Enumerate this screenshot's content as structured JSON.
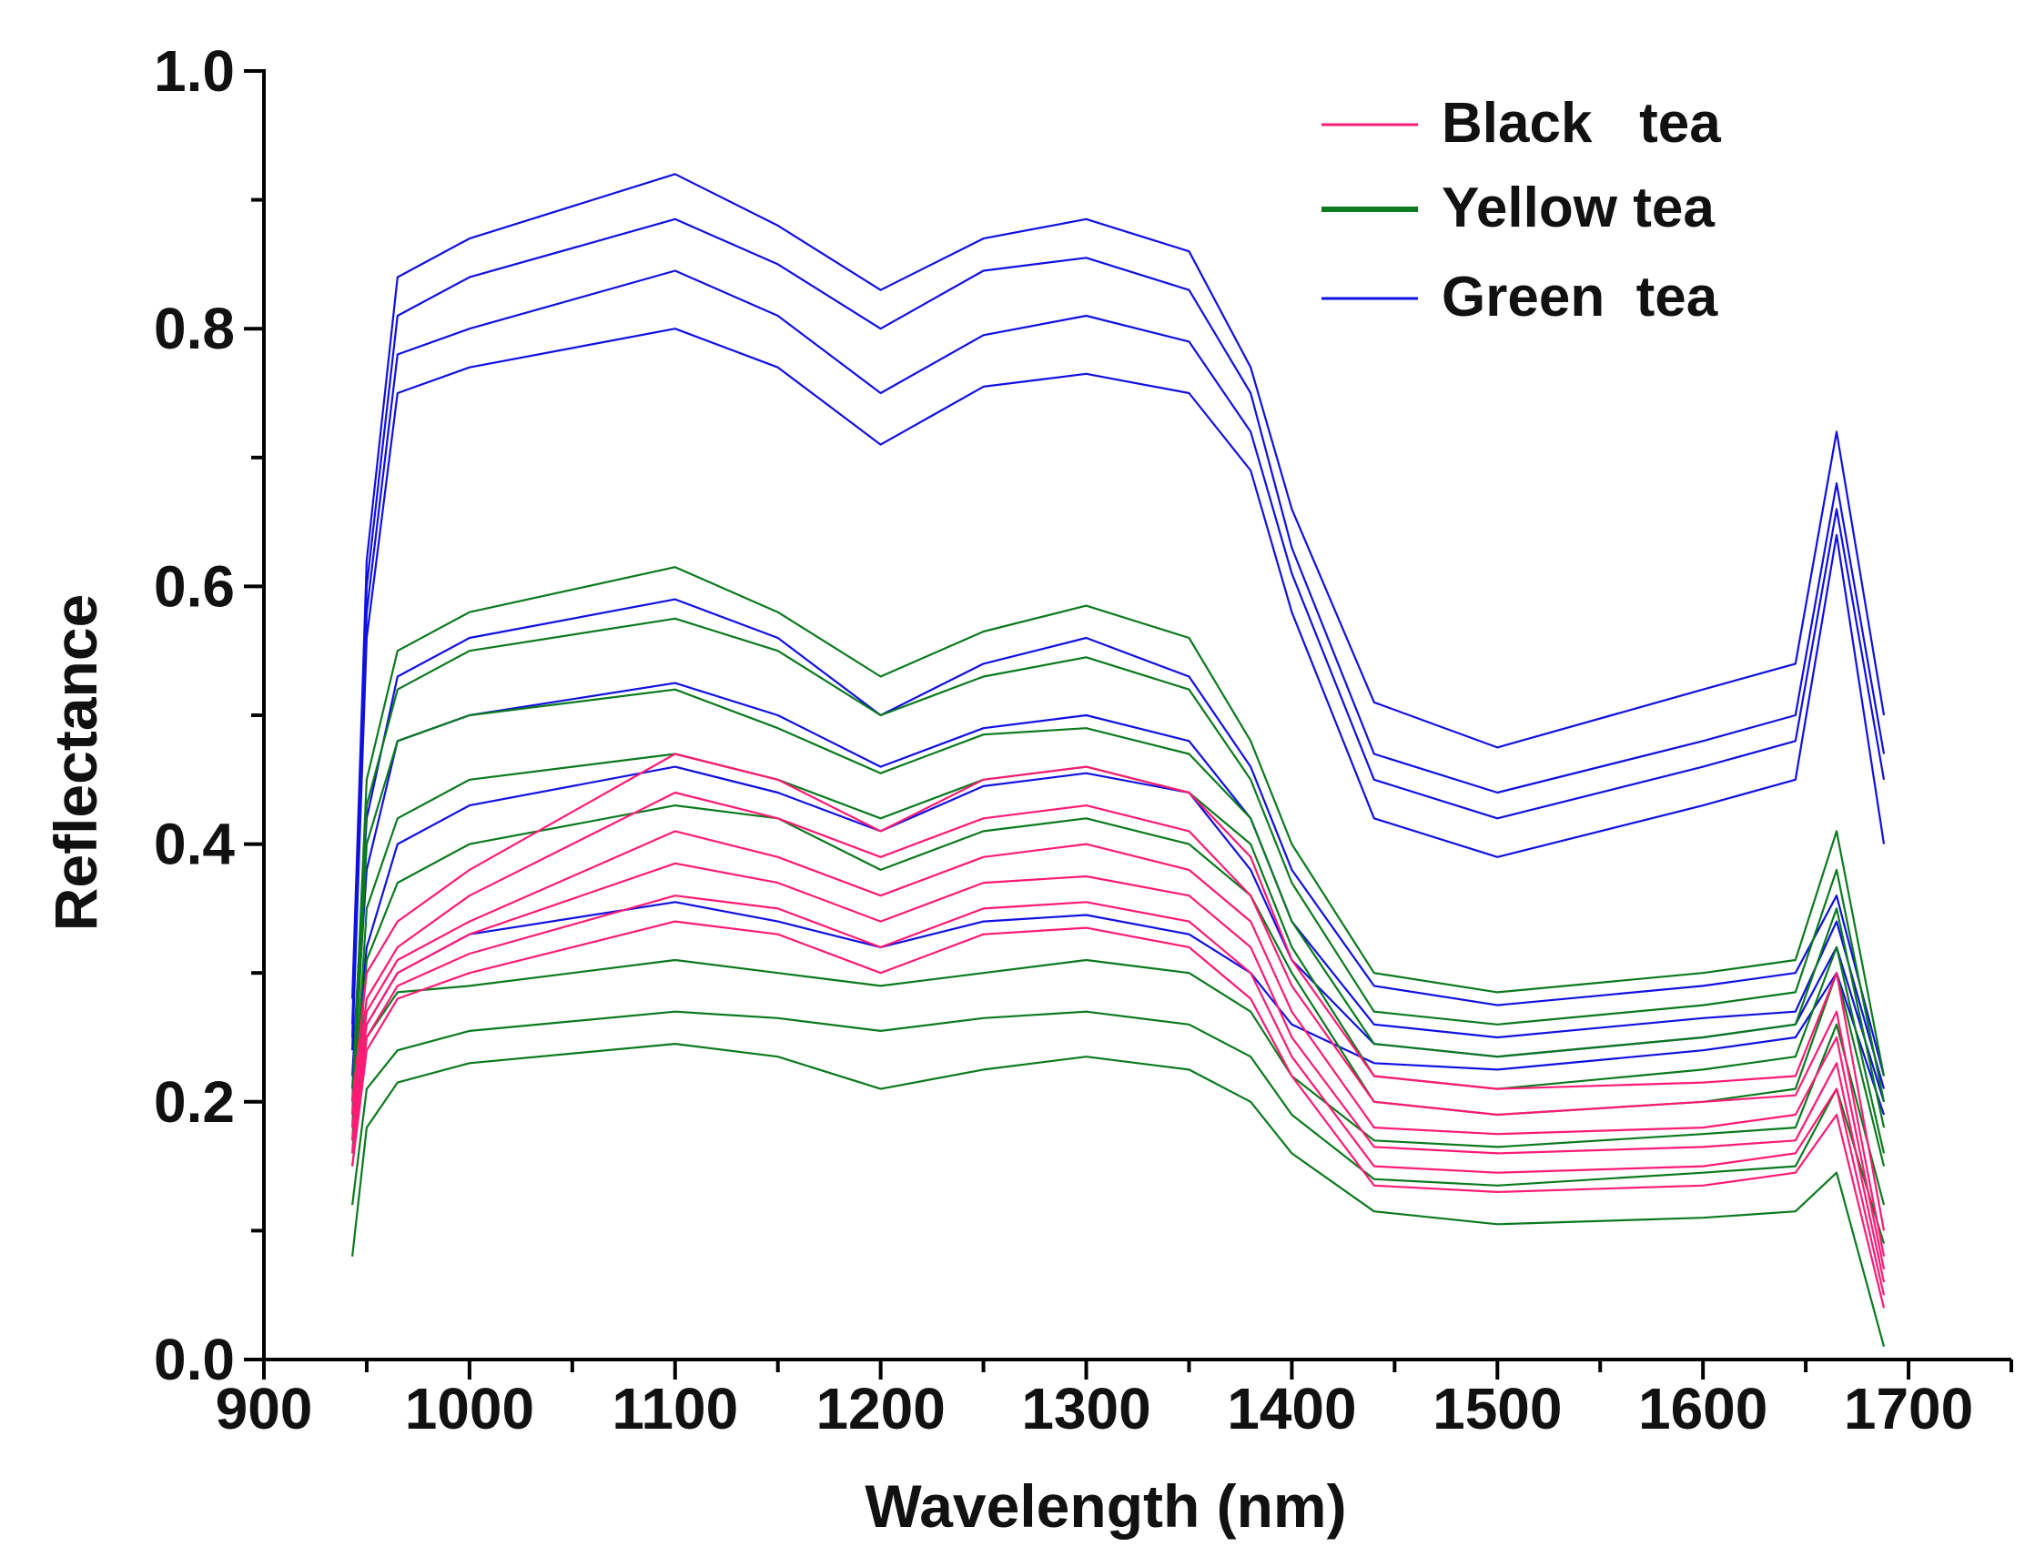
{
  "chart_data": {
    "type": "line",
    "xlabel": "Wavelength (nm)",
    "ylabel": "Reflectance",
    "xlim": [
      900,
      1750
    ],
    "ylim": [
      0.0,
      1.0
    ],
    "x_ticks": [
      900,
      1000,
      1100,
      1200,
      1300,
      1400,
      1500,
      1600,
      1700
    ],
    "y_ticks": [
      "0.0",
      "0.2",
      "0.4",
      "0.6",
      "0.8",
      "1.0"
    ],
    "grid": false,
    "legend_position": "top-right",
    "legend": [
      {
        "label": "Black   tea",
        "color": "#ff1a75"
      },
      {
        "label": "Yellow tea",
        "color": "#0b7a1e"
      },
      {
        "label": "Green  tea",
        "color": "#1010e0"
      }
    ],
    "x": [
      943,
      950,
      965,
      1000,
      1100,
      1150,
      1200,
      1250,
      1300,
      1350,
      1380,
      1400,
      1440,
      1500,
      1600,
      1645,
      1665,
      1688
    ],
    "series": [
      {
        "group": "Green tea",
        "color": "#1010e0",
        "values": [
          0.28,
          0.62,
          0.84,
          0.87,
          0.92,
          0.88,
          0.83,
          0.87,
          0.885,
          0.86,
          0.77,
          0.66,
          0.51,
          0.475,
          0.52,
          0.54,
          0.72,
          0.5
        ]
      },
      {
        "group": "Green tea",
        "color": "#1010e0",
        "values": [
          0.26,
          0.6,
          0.81,
          0.84,
          0.885,
          0.85,
          0.8,
          0.845,
          0.855,
          0.83,
          0.75,
          0.63,
          0.47,
          0.44,
          0.48,
          0.5,
          0.68,
          0.47
        ]
      },
      {
        "group": "Green tea",
        "color": "#1010e0",
        "values": [
          0.25,
          0.58,
          0.78,
          0.8,
          0.845,
          0.81,
          0.75,
          0.795,
          0.81,
          0.79,
          0.72,
          0.61,
          0.45,
          0.42,
          0.46,
          0.48,
          0.66,
          0.45
        ]
      },
      {
        "group": "Green tea",
        "color": "#1010e0",
        "values": [
          0.24,
          0.56,
          0.75,
          0.77,
          0.8,
          0.77,
          0.71,
          0.755,
          0.765,
          0.75,
          0.69,
          0.58,
          0.42,
          0.39,
          0.43,
          0.45,
          0.64,
          0.4
        ]
      },
      {
        "group": "Green tea",
        "color": "#1010e0",
        "values": [
          0.22,
          0.42,
          0.53,
          0.56,
          0.59,
          0.56,
          0.5,
          0.54,
          0.56,
          0.53,
          0.46,
          0.38,
          0.29,
          0.275,
          0.29,
          0.3,
          0.36,
          0.22
        ]
      },
      {
        "group": "Green tea",
        "color": "#1010e0",
        "values": [
          0.21,
          0.38,
          0.48,
          0.5,
          0.525,
          0.5,
          0.46,
          0.49,
          0.5,
          0.48,
          0.42,
          0.34,
          0.26,
          0.25,
          0.265,
          0.27,
          0.34,
          0.21
        ]
      },
      {
        "group": "Green tea",
        "color": "#1010e0",
        "values": [
          0.2,
          0.32,
          0.4,
          0.43,
          0.46,
          0.44,
          0.41,
          0.445,
          0.455,
          0.44,
          0.38,
          0.31,
          0.245,
          0.235,
          0.25,
          0.26,
          0.32,
          0.2
        ]
      },
      {
        "group": "Green tea",
        "color": "#1010e0",
        "values": [
          0.19,
          0.26,
          0.3,
          0.33,
          0.355,
          0.34,
          0.32,
          0.34,
          0.345,
          0.33,
          0.3,
          0.26,
          0.23,
          0.225,
          0.24,
          0.25,
          0.3,
          0.19
        ]
      },
      {
        "group": "Yellow tea",
        "color": "#0b7a1e",
        "values": [
          0.2,
          0.45,
          0.55,
          0.58,
          0.615,
          0.58,
          0.53,
          0.565,
          0.585,
          0.56,
          0.48,
          0.4,
          0.3,
          0.285,
          0.3,
          0.31,
          0.41,
          0.22
        ]
      },
      {
        "group": "Yellow tea",
        "color": "#0b7a1e",
        "values": [
          0.19,
          0.43,
          0.52,
          0.55,
          0.575,
          0.55,
          0.5,
          0.53,
          0.545,
          0.52,
          0.45,
          0.37,
          0.27,
          0.26,
          0.275,
          0.285,
          0.38,
          0.2
        ]
      },
      {
        "group": "Yellow tea",
        "color": "#0b7a1e",
        "values": [
          0.18,
          0.4,
          0.48,
          0.5,
          0.52,
          0.49,
          0.455,
          0.485,
          0.49,
          0.47,
          0.42,
          0.34,
          0.245,
          0.235,
          0.25,
          0.26,
          0.35,
          0.18
        ]
      },
      {
        "group": "Yellow tea",
        "color": "#0b7a1e",
        "values": [
          0.17,
          0.35,
          0.42,
          0.45,
          0.47,
          0.45,
          0.42,
          0.45,
          0.46,
          0.44,
          0.4,
          0.32,
          0.22,
          0.21,
          0.225,
          0.235,
          0.32,
          0.16
        ]
      },
      {
        "group": "Yellow tea",
        "color": "#0b7a1e",
        "values": [
          0.16,
          0.31,
          0.37,
          0.4,
          0.43,
          0.42,
          0.38,
          0.41,
          0.42,
          0.4,
          0.36,
          0.3,
          0.2,
          0.19,
          0.2,
          0.21,
          0.3,
          0.15
        ]
      },
      {
        "group": "Yellow tea",
        "color": "#0b7a1e",
        "values": [
          0.15,
          0.25,
          0.285,
          0.29,
          0.31,
          0.3,
          0.29,
          0.3,
          0.31,
          0.3,
          0.27,
          0.22,
          0.17,
          0.165,
          0.175,
          0.18,
          0.26,
          0.12
        ]
      },
      {
        "group": "Yellow tea",
        "color": "#0b7a1e",
        "values": [
          0.12,
          0.21,
          0.24,
          0.255,
          0.27,
          0.265,
          0.255,
          0.265,
          0.27,
          0.26,
          0.235,
          0.19,
          0.14,
          0.135,
          0.145,
          0.15,
          0.21,
          0.09
        ]
      },
      {
        "group": "Yellow tea",
        "color": "#0b7a1e",
        "values": [
          0.08,
          0.18,
          0.215,
          0.23,
          0.245,
          0.235,
          0.21,
          0.225,
          0.235,
          0.225,
          0.2,
          0.16,
          0.115,
          0.105,
          0.11,
          0.115,
          0.145,
          0.01
        ]
      },
      {
        "group": "Black tea",
        "color": "#ff1a75",
        "values": [
          0.2,
          0.3,
          0.34,
          0.38,
          0.47,
          0.45,
          0.41,
          0.45,
          0.46,
          0.44,
          0.39,
          0.31,
          0.22,
          0.21,
          0.215,
          0.22,
          0.3,
          0.1
        ]
      },
      {
        "group": "Black tea",
        "color": "#ff1a75",
        "values": [
          0.19,
          0.28,
          0.32,
          0.36,
          0.44,
          0.42,
          0.39,
          0.42,
          0.43,
          0.41,
          0.36,
          0.29,
          0.2,
          0.19,
          0.2,
          0.205,
          0.27,
          0.08
        ]
      },
      {
        "group": "Black tea",
        "color": "#ff1a75",
        "values": [
          0.18,
          0.27,
          0.31,
          0.34,
          0.41,
          0.39,
          0.36,
          0.39,
          0.4,
          0.38,
          0.34,
          0.27,
          0.18,
          0.175,
          0.18,
          0.19,
          0.25,
          0.07
        ]
      },
      {
        "group": "Black tea",
        "color": "#ff1a75",
        "values": [
          0.17,
          0.26,
          0.3,
          0.33,
          0.385,
          0.37,
          0.34,
          0.37,
          0.375,
          0.36,
          0.32,
          0.25,
          0.165,
          0.16,
          0.165,
          0.17,
          0.23,
          0.06
        ]
      },
      {
        "group": "Black tea",
        "color": "#ff1a75",
        "values": [
          0.16,
          0.25,
          0.29,
          0.315,
          0.36,
          0.35,
          0.32,
          0.35,
          0.355,
          0.34,
          0.3,
          0.235,
          0.15,
          0.145,
          0.15,
          0.16,
          0.21,
          0.05
        ]
      },
      {
        "group": "Black tea",
        "color": "#ff1a75",
        "values": [
          0.15,
          0.24,
          0.28,
          0.3,
          0.34,
          0.33,
          0.3,
          0.33,
          0.335,
          0.32,
          0.28,
          0.22,
          0.135,
          0.13,
          0.135,
          0.145,
          0.19,
          0.04
        ]
      }
    ]
  }
}
